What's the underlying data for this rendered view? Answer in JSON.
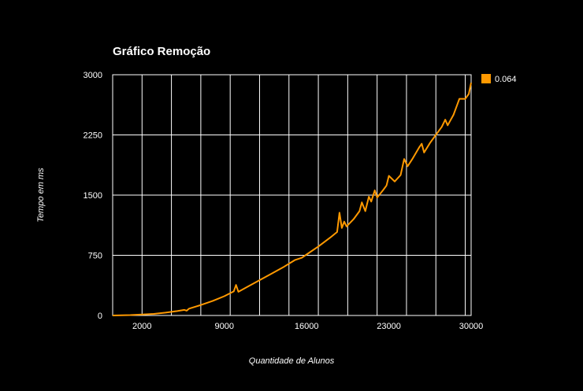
{
  "chart_data": {
    "type": "line",
    "title": "Gráfico Remoção",
    "xlabel": "Quantidade de Alunos",
    "ylabel": "Tempo em ms",
    "xlim": [
      -500,
      30000
    ],
    "ylim": [
      0,
      3000
    ],
    "x_ticks": [
      "2000",
      "9000",
      "16000",
      "23000",
      "30000"
    ],
    "y_ticks": [
      "0",
      "750",
      "1500",
      "2250",
      "3000"
    ],
    "grid": true,
    "legend_position": "right",
    "series": [
      {
        "name": "0.064",
        "color": "#ff9900",
        "x": [
          -500,
          1000,
          2000,
          3000,
          4000,
          5000,
          5600,
          5800,
          6000,
          7000,
          8000,
          9000,
          9800,
          10000,
          10200,
          11000,
          12000,
          13000,
          14000,
          15000,
          15600,
          16000,
          17000,
          18000,
          18600,
          18800,
          19000,
          19200,
          19400,
          20000,
          20500,
          20700,
          21000,
          21300,
          21500,
          21800,
          22000,
          22500,
          22800,
          23000,
          23500,
          24000,
          24300,
          24600,
          25000,
          25600,
          25800,
          26000,
          26500,
          27000,
          27500,
          27800,
          28000,
          28500,
          28800,
          29000,
          29500,
          29800,
          30000
        ],
        "values": [
          0,
          5,
          12,
          20,
          35,
          55,
          70,
          60,
          85,
          130,
          180,
          240,
          300,
          380,
          295,
          360,
          440,
          520,
          600,
          690,
          720,
          760,
          860,
          970,
          1040,
          1280,
          1090,
          1170,
          1110,
          1200,
          1300,
          1410,
          1300,
          1480,
          1420,
          1560,
          1470,
          1560,
          1620,
          1740,
          1670,
          1750,
          1950,
          1860,
          1950,
          2100,
          2140,
          2030,
          2150,
          2250,
          2350,
          2440,
          2370,
          2500,
          2620,
          2700,
          2700,
          2760,
          2900
        ]
      }
    ]
  }
}
